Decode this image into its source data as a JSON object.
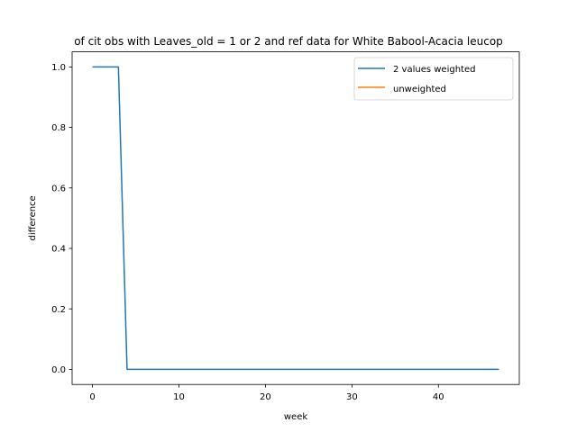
{
  "chart_data": {
    "type": "line",
    "title": "of cit obs with Leaves_old = 1 or 2 and ref data for White Babool-Acacia leucop",
    "xlabel": "week",
    "ylabel": "difference",
    "xlim": [
      -2.35,
      49.35
    ],
    "ylim": [
      -0.05,
      1.05
    ],
    "x_ticks": [
      0,
      10,
      20,
      30,
      40
    ],
    "y_ticks": [
      0.0,
      0.2,
      0.4,
      0.6,
      0.8,
      1.0
    ],
    "x_tick_labels": [
      "0",
      "10",
      "20",
      "30",
      "40"
    ],
    "y_tick_labels": [
      "0.0",
      "0.2",
      "0.4",
      "0.6",
      "0.8",
      "1.0"
    ],
    "grid": false,
    "legend_position": "top-right",
    "series": [
      {
        "name": "2 values weighted",
        "color": "#1f77b4",
        "x": [
          0,
          1,
          2,
          3,
          4,
          5,
          6,
          7,
          8,
          9,
          10,
          11,
          12,
          13,
          14,
          15,
          16,
          17,
          18,
          19,
          20,
          21,
          22,
          23,
          24,
          25,
          26,
          27,
          28,
          29,
          30,
          31,
          32,
          33,
          34,
          35,
          36,
          37,
          38,
          39,
          40,
          41,
          42,
          43,
          44,
          45,
          46,
          47
        ],
        "values": [
          1,
          1,
          1,
          1,
          0,
          0,
          0,
          0,
          0,
          0,
          0,
          0,
          0,
          0,
          0,
          0,
          0,
          0,
          0,
          0,
          0,
          0,
          0,
          0,
          0,
          0,
          0,
          0,
          0,
          0,
          0,
          0,
          0,
          0,
          0,
          0,
          0,
          0,
          0,
          0,
          0,
          0,
          0,
          0,
          0,
          0,
          0,
          0
        ]
      },
      {
        "name": "unweighted",
        "color": "#ff7f0e",
        "x": [],
        "values": []
      }
    ]
  }
}
